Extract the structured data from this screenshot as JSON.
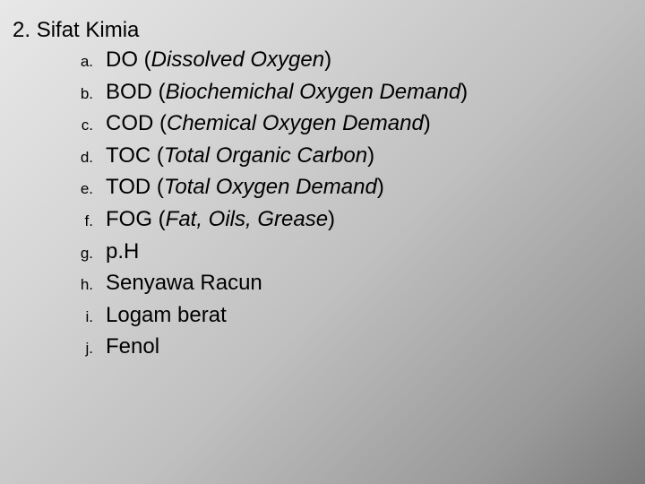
{
  "heading": {
    "number": "2.",
    "title": "Sifat Kimia"
  },
  "items": [
    {
      "marker": "a.",
      "abbrev": "DO",
      "expansion": "Dissolved Oxygen",
      "hasExpansion": true
    },
    {
      "marker": "b.",
      "abbrev": "BOD",
      "expansion": "Biochemichal Oxygen Demand",
      "hasExpansion": true
    },
    {
      "marker": "c.",
      "abbrev": "COD",
      "expansion": "Chemical Oxygen Demand",
      "hasExpansion": true
    },
    {
      "marker": "d.",
      "abbrev": "TOC",
      "expansion": "Total Organic Carbon",
      "hasExpansion": true
    },
    {
      "marker": "e.",
      "abbrev": "TOD",
      "expansion": "Total Oxygen Demand",
      "hasExpansion": true
    },
    {
      "marker": "f.",
      "abbrev": "FOG",
      "expansion": "Fat, Oils, Grease",
      "hasExpansion": true
    },
    {
      "marker": "g.",
      "abbrev": "p.H",
      "expansion": "",
      "hasExpansion": false
    },
    {
      "marker": "h.",
      "abbrev": "Senyawa Racun",
      "expansion": "",
      "hasExpansion": false
    },
    {
      "marker": "i.",
      "abbrev": "Logam berat",
      "expansion": "",
      "hasExpansion": false
    },
    {
      "marker": "j.",
      "abbrev": "Fenol",
      "expansion": "",
      "hasExpansion": false
    }
  ],
  "style": {
    "text_color": "#000000",
    "heading_fontsize": 24,
    "item_fontsize": 24,
    "marker_fontsize": 17,
    "background_gradient": [
      "#e8e8e8",
      "#d4d4d4",
      "#c0c0c0",
      "#999999",
      "#7a7a7a"
    ]
  }
}
